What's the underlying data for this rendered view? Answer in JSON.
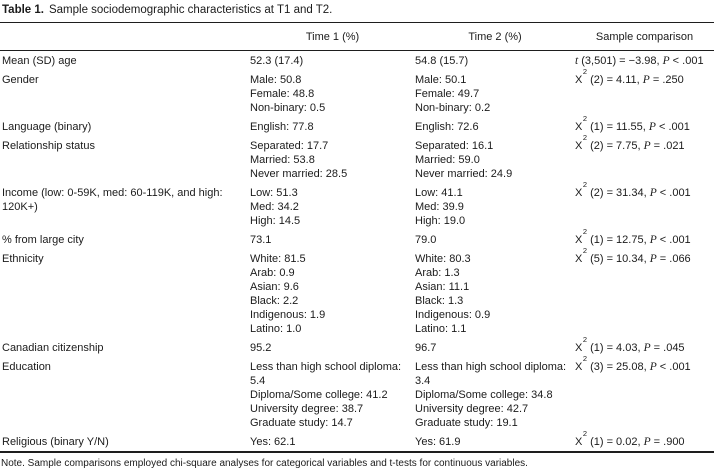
{
  "page": {
    "background_color": "#ffffff",
    "text_color": "#1b1b1b",
    "rule_color": "#1e1e1e"
  },
  "table": {
    "title": {
      "label": "Table 1.",
      "caption": "Sample sociodemographic characteristics at T1 and T2."
    },
    "columns": {
      "characteristic": "",
      "time1": "Time 1 (%)",
      "time2": "Time 2 (%)",
      "comparison": "Sample comparison"
    },
    "rows": [
      {
        "characteristic": [
          "Mean (SD) age"
        ],
        "time1": [
          "52.3 (17.4)"
        ],
        "time2": [
          "54.8 (15.7)"
        ],
        "comparison": {
          "stat": "t",
          "sup": "",
          "mid": " (3,501) = −3.98, ",
          "p": "P",
          "tail": " < .001"
        }
      },
      {
        "characteristic": [
          "Gender"
        ],
        "time1": [
          "Male: 50.8",
          "Female: 48.8",
          "Non-binary: 0.5"
        ],
        "time2": [
          "Male: 50.1",
          "Female: 49.7",
          "Non-binary: 0.2"
        ],
        "comparison": {
          "stat": "X",
          "sup": "2",
          "mid": " (2) = 4.11, ",
          "p": "P",
          "tail": " = .250"
        }
      },
      {
        "characteristic": [
          "Language (binary)"
        ],
        "time1": [
          "English: 77.8"
        ],
        "time2": [
          "English: 72.6"
        ],
        "comparison": {
          "stat": "X",
          "sup": "2",
          "mid": " (1) = 11.55, ",
          "p": "P",
          "tail": " < .001"
        }
      },
      {
        "characteristic": [
          "Relationship status"
        ],
        "time1": [
          "Separated: 17.7",
          "Married: 53.8",
          "Never married: 28.5"
        ],
        "time2": [
          "Separated: 16.1",
          "Married: 59.0",
          "Never married: 24.9"
        ],
        "comparison": {
          "stat": "X",
          "sup": "2",
          "mid": " (2) = 7.75, ",
          "p": "P",
          "tail": " = .021"
        }
      },
      {
        "characteristic": [
          "Income (low: 0-59K, med: 60-119K, and high:",
          "120K+)"
        ],
        "time1": [
          "Low: 51.3",
          "Med: 34.2",
          "High: 14.5"
        ],
        "time2": [
          "Low: 41.1",
          "Med: 39.9",
          "High: 19.0"
        ],
        "comparison": {
          "stat": "X",
          "sup": "2",
          "mid": " (2) = 31.34, ",
          "p": "P",
          "tail": " < .001"
        }
      },
      {
        "characteristic": [
          "% from large city"
        ],
        "time1": [
          "73.1"
        ],
        "time2": [
          "79.0"
        ],
        "comparison": {
          "stat": "X",
          "sup": "2",
          "mid": " (1) = 12.75, ",
          "p": "P",
          "tail": " < .001"
        }
      },
      {
        "characteristic": [
          "Ethnicity"
        ],
        "time1": [
          "White: 81.5",
          "Arab: 0.9",
          "Asian: 9.6",
          "Black: 2.2",
          "Indigenous: 1.9",
          "Latino: 1.0"
        ],
        "time2": [
          "White: 80.3",
          "Arab: 1.3",
          "Asian: 11.1",
          "Black: 1.3",
          "Indigenous: 0.9",
          "Latino: 1.1"
        ],
        "comparison": {
          "stat": "X",
          "sup": "2",
          "mid": " (5) = 10.34, ",
          "p": "P",
          "tail": " = .066"
        }
      },
      {
        "characteristic": [
          "Canadian citizenship"
        ],
        "time1": [
          "95.2"
        ],
        "time2": [
          "96.7"
        ],
        "comparison": {
          "stat": "X",
          "sup": "2",
          "mid": " (1) = 4.03, ",
          "p": "P",
          "tail": " = .045"
        }
      },
      {
        "characteristic": [
          "Education"
        ],
        "time1": [
          "Less than high school diploma:",
          "5.4",
          "Diploma/Some college: 41.2",
          "University degree: 38.7",
          "Graduate study: 14.7"
        ],
        "time2": [
          "Less than high school diploma:",
          "3.4",
          "Diploma/Some college: 34.8",
          "University degree: 42.7",
          "Graduate study: 19.1"
        ],
        "comparison": {
          "stat": "X",
          "sup": "2",
          "mid": " (3) = 25.08, ",
          "p": "P",
          "tail": " < .001"
        }
      },
      {
        "characteristic": [
          "Religious (binary Y/N)"
        ],
        "time1": [
          "Yes: 62.1"
        ],
        "time2": [
          "Yes: 61.9"
        ],
        "comparison": {
          "stat": "X",
          "sup": "2",
          "mid": " (1) = 0.02, ",
          "p": "P",
          "tail": " = .900"
        }
      }
    ],
    "note": "Note. Sample comparisons employed chi-square analyses for categorical variables and t-tests for continuous variables."
  }
}
